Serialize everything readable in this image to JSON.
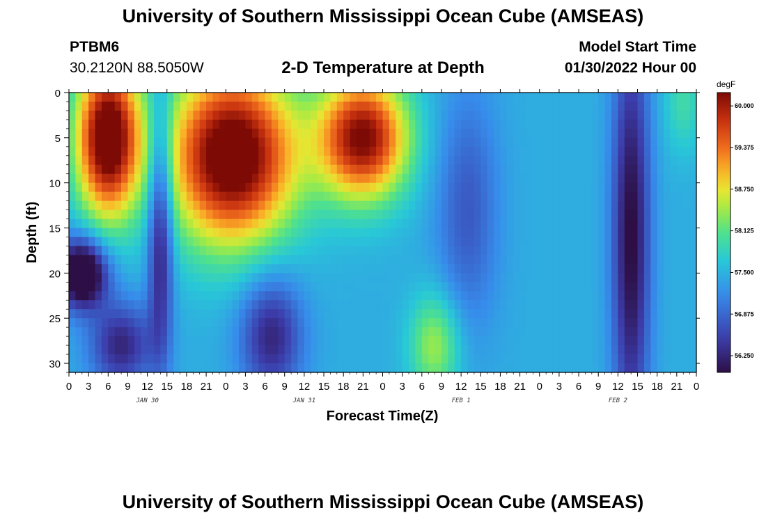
{
  "header": {
    "main_title": "University of Southern Mississippi Ocean Cube (AMSEAS)",
    "station_id": "PTBM6",
    "station_coords": "30.2120N  88.5050W",
    "plot_title": "2-D Temperature at Depth",
    "model_start_label": "Model Start Time",
    "model_start_value": "01/30/2022 Hour 00"
  },
  "footer": {
    "repeated_title": "University of Southern Mississippi Ocean Cube (AMSEAS)"
  },
  "chart_data": {
    "type": "heatmap",
    "xlabel": "Forecast Time(Z)",
    "ylabel": "Depth (ft)",
    "xlim": [
      0,
      96
    ],
    "ylim": [
      31,
      0
    ],
    "x_ticks": [
      0,
      3,
      6,
      9,
      12,
      15,
      18,
      21,
      24,
      27,
      30,
      33,
      36,
      39,
      42,
      45,
      48,
      51,
      54,
      57,
      60,
      63,
      66,
      69,
      72,
      75,
      78,
      81,
      84,
      87,
      90,
      93,
      96
    ],
    "x_tick_labels": [
      "0",
      "3",
      "6",
      "9",
      "12",
      "15",
      "18",
      "21",
      "0",
      "3",
      "6",
      "9",
      "12",
      "15",
      "18",
      "21",
      "0",
      "3",
      "6",
      "9",
      "12",
      "15",
      "18",
      "21",
      "0",
      "3",
      "6",
      "9",
      "12",
      "15",
      "18",
      "21",
      "0"
    ],
    "day_labels": [
      {
        "x": 12,
        "label": "JAN 30"
      },
      {
        "x": 36,
        "label": "JAN 31"
      },
      {
        "x": 60,
        "label": "FEB 1"
      },
      {
        "x": 84,
        "label": "FEB 2"
      }
    ],
    "y_ticks": [
      0,
      5,
      10,
      15,
      20,
      25,
      30
    ],
    "y_tick_labels": [
      "0",
      "5",
      "10",
      "15",
      "20",
      "25",
      "30"
    ],
    "colorbar": {
      "unit": "degF",
      "min": 56.0,
      "max": 60.2,
      "tick_values": [
        60.0,
        59.375,
        58.75,
        58.125,
        57.5,
        56.875,
        56.25
      ],
      "tick_labels": [
        "60.000",
        "59.375",
        "58.750",
        "58.125",
        "57.500",
        "56.875",
        "56.250"
      ]
    },
    "warm_blobs": [
      {
        "x": 6,
        "y": 5,
        "rx": 5,
        "ry": 9,
        "amp": 3.2
      },
      {
        "x": 25,
        "y": 7,
        "rx": 10,
        "ry": 10,
        "amp": 3.2
      },
      {
        "x": 45,
        "y": 5,
        "rx": 7,
        "ry": 7,
        "amp": 2.8
      },
      {
        "x": 56,
        "y": 28,
        "rx": 4,
        "ry": 6,
        "amp": 1.0
      },
      {
        "x": 94,
        "y": 1,
        "rx": 3,
        "ry": 6,
        "amp": 0.5
      }
    ],
    "cold_blobs": [
      {
        "x": 2,
        "y": 20,
        "rx": 4,
        "ry": 4,
        "amp": 2.2
      },
      {
        "x": 8,
        "y": 28,
        "rx": 5,
        "ry": 5,
        "amp": 1.2
      },
      {
        "x": 14,
        "y": 15,
        "rx": 2,
        "ry": 15,
        "amp": 1.4
      },
      {
        "x": 31,
        "y": 27,
        "rx": 5,
        "ry": 7,
        "amp": 1.2
      },
      {
        "x": 61,
        "y": 13,
        "rx": 5,
        "ry": 14,
        "amp": 0.7
      },
      {
        "x": 86,
        "y": 16,
        "rx": 3,
        "ry": 24,
        "amp": 1.5
      }
    ],
    "base_value": 57.45,
    "grid": false
  }
}
